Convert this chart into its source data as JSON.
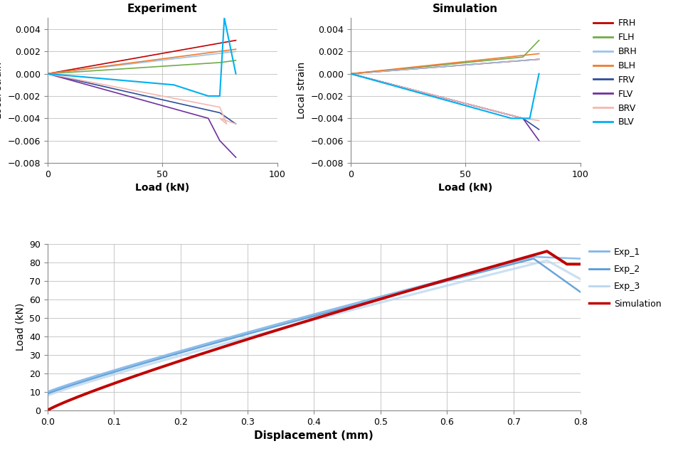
{
  "exp_title": "Experiment",
  "sim_title": "Simulation",
  "strain_xlabel": "Load (kN)",
  "strain_ylabel": "Local strain",
  "disp_xlabel": "Displacement (mm)",
  "disp_ylabel": "Load (kN)",
  "strain_xlim": [
    0,
    100
  ],
  "strain_ylim": [
    -0.008,
    0.005
  ],
  "disp_xlim": [
    0,
    0.8
  ],
  "disp_ylim": [
    0,
    90
  ],
  "legend_entries": [
    "FRH",
    "FLH",
    "BRH",
    "BLH",
    "FRV",
    "FLV",
    "BRV",
    "BLV"
  ],
  "legend_colors": [
    "#c00000",
    "#70ad47",
    "#9dc3e6",
    "#ed7d31",
    "#2e4e9a",
    "#7030a0",
    "#f4b8b0",
    "#00b0f0"
  ],
  "disp_legend": [
    "Exp_1",
    "Exp_2",
    "Exp_3",
    "Simulation"
  ],
  "disp_colors": [
    "#7eb6e8",
    "#5b9bd5",
    "#bad6f0",
    "#c00000"
  ],
  "background_color": "#ffffff",
  "grid_color": "#bfbfbf",
  "title_fontsize": 11,
  "label_fontsize": 10,
  "tick_fontsize": 9
}
